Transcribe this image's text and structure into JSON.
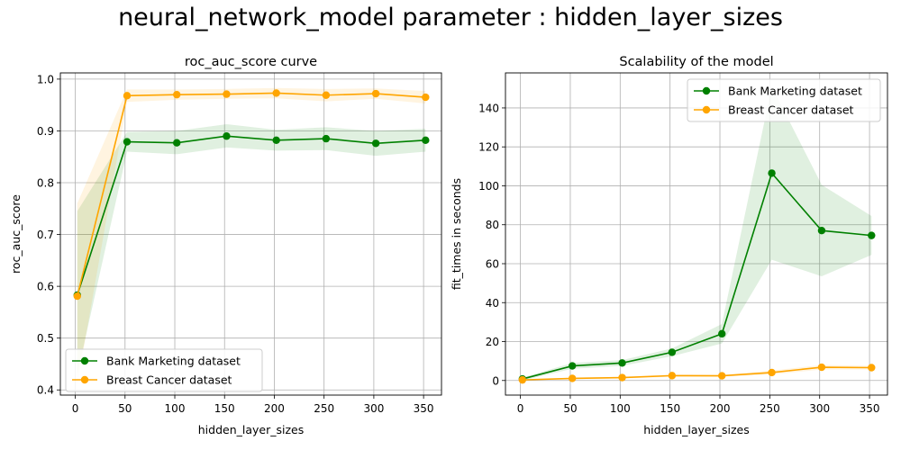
{
  "suptitle": "neural_network_model parameter : hidden_layer_sizes",
  "chart_data": [
    {
      "type": "line",
      "title": "roc_auc_score curve",
      "xlabel": "hidden_layer_sizes",
      "ylabel": "roc_auc_score",
      "xlim": [
        -15,
        368
      ],
      "ylim": [
        0.39,
        1.012
      ],
      "xticks": [
        0,
        50,
        100,
        150,
        200,
        250,
        300,
        350
      ],
      "yticks": [
        0.4,
        0.5,
        0.6,
        0.7,
        0.8,
        0.9,
        1.0
      ],
      "xtick_labels": [
        "0",
        "50",
        "100",
        "150",
        "200",
        "250",
        "300",
        "350"
      ],
      "ytick_labels": [
        "0.4",
        "0.5",
        "0.6",
        "0.7",
        "0.8",
        "0.9",
        "1.0"
      ],
      "grid": true,
      "legend_position": "lower-left",
      "x": [
        2,
        52,
        102,
        152,
        202,
        252,
        302,
        352
      ],
      "series": [
        {
          "name": "Bank Marketing dataset",
          "color": "#008000",
          "values": [
            0.583,
            0.879,
            0.877,
            0.89,
            0.882,
            0.885,
            0.876,
            0.882
          ],
          "lower": [
            0.43,
            0.86,
            0.855,
            0.868,
            0.862,
            0.863,
            0.852,
            0.86
          ],
          "upper": [
            0.745,
            0.898,
            0.9,
            0.913,
            0.902,
            0.907,
            0.9,
            0.904
          ]
        },
        {
          "name": "Breast Cancer dataset",
          "color": "#FFA500",
          "values": [
            0.581,
            0.968,
            0.97,
            0.971,
            0.973,
            0.969,
            0.972,
            0.965
          ],
          "lower": [
            0.41,
            0.956,
            0.96,
            0.962,
            0.963,
            0.957,
            0.962,
            0.953
          ],
          "upper": [
            0.76,
            0.98,
            0.98,
            0.981,
            0.983,
            0.981,
            0.982,
            0.977
          ]
        }
      ]
    },
    {
      "type": "line",
      "title": "Scalability of the model",
      "xlabel": "hidden_layer_sizes",
      "ylabel": "fit_times in seconds",
      "xlim": [
        -15,
        368
      ],
      "ylim": [
        -7.5,
        158
      ],
      "xticks": [
        0,
        50,
        100,
        150,
        200,
        250,
        300,
        350
      ],
      "yticks": [
        0,
        20,
        40,
        60,
        80,
        100,
        120,
        140
      ],
      "xtick_labels": [
        "0",
        "50",
        "100",
        "150",
        "200",
        "250",
        "300",
        "350"
      ],
      "ytick_labels": [
        "0",
        "20",
        "40",
        "60",
        "80",
        "100",
        "120",
        "140"
      ],
      "grid": true,
      "legend_position": "upper-right",
      "x": [
        2,
        52,
        102,
        152,
        202,
        252,
        302,
        352
      ],
      "series": [
        {
          "name": "Bank Marketing dataset",
          "color": "#008000",
          "values": [
            0.8,
            7.5,
            9.0,
            14.5,
            24.0,
            106.5,
            77.0,
            74.5
          ],
          "lower": [
            0.0,
            6.0,
            7.5,
            12.5,
            19.0,
            62.0,
            53.5,
            64.5
          ],
          "upper": [
            1.5,
            9.0,
            10.5,
            16.5,
            29.0,
            151.0,
            100.5,
            84.5
          ]
        },
        {
          "name": "Breast Cancer dataset",
          "color": "#FFA500",
          "values": [
            0.3,
            1.1,
            1.5,
            2.5,
            2.4,
            4.1,
            6.8,
            6.6
          ],
          "lower": [
            0.1,
            0.8,
            1.1,
            1.9,
            1.9,
            3.1,
            5.6,
            5.6
          ],
          "upper": [
            0.5,
            1.4,
            1.9,
            3.1,
            2.9,
            5.1,
            8.0,
            7.6
          ]
        }
      ]
    }
  ]
}
